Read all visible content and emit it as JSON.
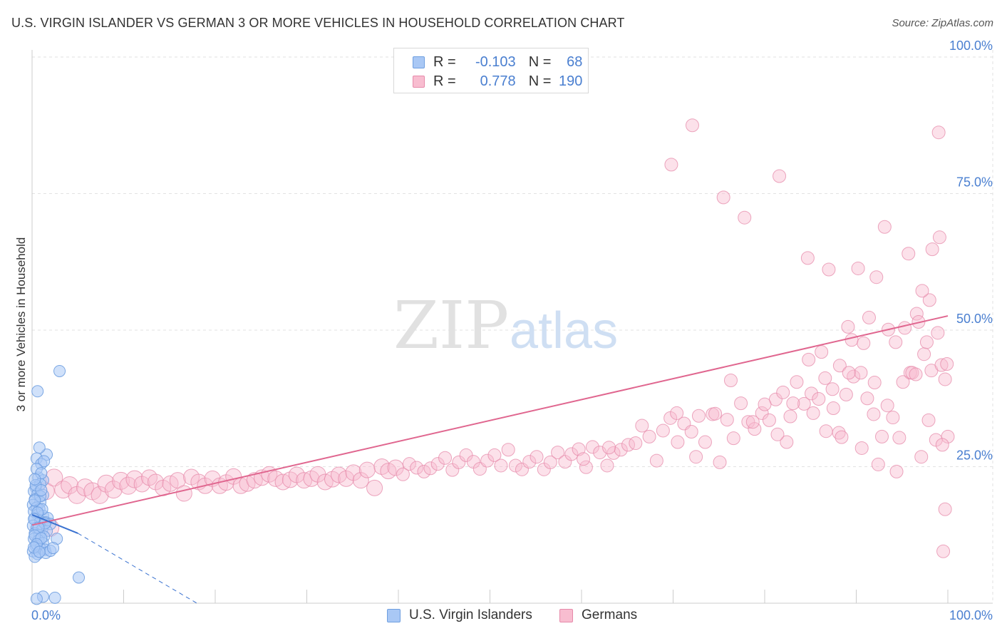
{
  "title": "U.S. VIRGIN ISLANDER VS GERMAN 3 OR MORE VEHICLES IN HOUSEHOLD CORRELATION CHART",
  "source": "Source: ZipAtlas.com",
  "watermark": {
    "zip": "ZIP",
    "atlas": "atlas"
  },
  "legend": {
    "rows": [
      {
        "r_label": "R =",
        "r_value": "-0.103",
        "n_label": "N =",
        "n_value": "68",
        "color": "#a9c8f5"
      },
      {
        "r_label": "R =",
        "r_value": "0.778",
        "n_label": "N =",
        "n_value": "190",
        "color": "#f8bdd0"
      }
    ]
  },
  "bottom_legend": [
    {
      "label": "U.S. Virgin Islanders",
      "color": "#a9c8f5",
      "border": "#6f9fe0"
    },
    {
      "label": "Germans",
      "color": "#f8bdd0",
      "border": "#e68aaa"
    }
  ],
  "chart_data": {
    "type": "scatter",
    "title": "U.S. VIRGIN ISLANDER VS GERMAN 3 OR MORE VEHICLES IN HOUSEHOLD CORRELATION CHART",
    "xlabel": "",
    "ylabel": "3 or more Vehicles in Household",
    "xlim": [
      0,
      100
    ],
    "ylim": [
      0,
      100
    ],
    "x_tick_labels": [
      "0.0%",
      "100.0%"
    ],
    "y_tick_labels": [
      "100.0%",
      "75.0%",
      "50.0%",
      "25.0%"
    ],
    "y_ticks": [
      100,
      75,
      50,
      25
    ],
    "grid": true,
    "legend_position": "top-center",
    "series": [
      {
        "name": "U.S. Virgin Islanders",
        "color": "#6f9fe0",
        "fill": "#a9c8f5",
        "trend": {
          "x0": 0,
          "y0": 16.2,
          "x1": 5,
          "y1": 12.8,
          "dashed_to_x": 18,
          "dashed_to_y": 0
        },
        "points": [
          [
            3,
            42.5
          ],
          [
            0.6,
            38.8
          ],
          [
            1.6,
            27.2
          ],
          [
            0.8,
            28.5
          ],
          [
            0.5,
            26.5
          ],
          [
            1,
            25.5
          ],
          [
            1.3,
            26
          ],
          [
            0.7,
            23
          ],
          [
            1.2,
            22.5
          ],
          [
            0.4,
            21.2
          ],
          [
            0.9,
            21.8
          ],
          [
            0.2,
            20.5
          ],
          [
            0.6,
            20
          ],
          [
            1.2,
            19.8
          ],
          [
            0.3,
            19
          ],
          [
            0.9,
            18.5
          ],
          [
            0.1,
            18
          ],
          [
            0.5,
            17.5
          ],
          [
            0.8,
            17.2
          ],
          [
            0.2,
            16.8
          ],
          [
            0.6,
            16.2
          ],
          [
            1.2,
            16
          ],
          [
            1.7,
            15.6
          ],
          [
            0.3,
            15.5
          ],
          [
            0.9,
            15
          ],
          [
            1.5,
            14.8
          ],
          [
            2,
            14.5
          ],
          [
            0.1,
            14.2
          ],
          [
            0.5,
            13.8
          ],
          [
            1.1,
            13.5
          ],
          [
            1.6,
            13.2
          ],
          [
            0.3,
            12.8
          ],
          [
            0.8,
            12.5
          ],
          [
            1.3,
            12.2
          ],
          [
            0.2,
            11.8
          ],
          [
            0.7,
            11.5
          ],
          [
            1.2,
            11
          ],
          [
            2.7,
            11.8
          ],
          [
            0.4,
            10.5
          ],
          [
            0.9,
            10
          ],
          [
            1.4,
            9.8
          ],
          [
            0.1,
            9.5
          ],
          [
            0.6,
            9
          ],
          [
            1.5,
            9.2
          ],
          [
            2,
            9.6
          ],
          [
            2.3,
            10.1
          ],
          [
            0.3,
            8.5
          ],
          [
            5.1,
            4.7
          ],
          [
            1.2,
            1.2
          ],
          [
            0.5,
            0.8
          ],
          [
            2.5,
            1
          ],
          [
            0.4,
            21.6
          ],
          [
            0.9,
            19.6
          ],
          [
            0.3,
            18.8
          ],
          [
            1.1,
            17.2
          ],
          [
            0.6,
            16.6
          ],
          [
            0.2,
            15.4
          ],
          [
            1.4,
            14.6
          ],
          [
            0.7,
            13.8
          ],
          [
            0.3,
            12.4
          ],
          [
            1.0,
            11.9
          ],
          [
            0.5,
            10.8
          ],
          [
            0.2,
            10.2
          ],
          [
            0.8,
            9.4
          ],
          [
            0.5,
            24.6
          ],
          [
            1.0,
            23.8
          ],
          [
            0.3,
            22.7
          ],
          [
            1.0,
            20.7
          ]
        ]
      },
      {
        "name": "Germans",
        "color": "#e68aaa",
        "fill": "#f8bdd0",
        "trend": {
          "x0": 0,
          "y0": 14.3,
          "x1": 100,
          "y1": 52.6
        },
        "points": [
          [
            2,
            13.8
          ],
          [
            1.5,
            20.5
          ],
          [
            2.4,
            23
          ],
          [
            3.4,
            20.8
          ],
          [
            4.1,
            21.6
          ],
          [
            4.9,
            19.8
          ],
          [
            5.8,
            21.2
          ],
          [
            6.6,
            20.5
          ],
          [
            7.4,
            19.8
          ],
          [
            8.1,
            21.9
          ],
          [
            8.9,
            20.8
          ],
          [
            9.7,
            22.4
          ],
          [
            10.5,
            21.5
          ],
          [
            11.2,
            22.7
          ],
          [
            12,
            21.8
          ],
          [
            12.8,
            23
          ],
          [
            13.5,
            22.2
          ],
          [
            14.3,
            21.1
          ],
          [
            15.1,
            21.9
          ],
          [
            15.9,
            22.5
          ],
          [
            16.6,
            20.1
          ],
          [
            17.4,
            23.1
          ],
          [
            18.2,
            22.2
          ],
          [
            18.9,
            21.5
          ],
          [
            19.7,
            22.8
          ],
          [
            20.5,
            21.5
          ],
          [
            21.2,
            22.1
          ],
          [
            22,
            23.2
          ],
          [
            22.8,
            21.5
          ],
          [
            23.5,
            21.9
          ],
          [
            24.3,
            22.5
          ],
          [
            25.1,
            23
          ],
          [
            25.9,
            23.6
          ],
          [
            26.6,
            22.8
          ],
          [
            27.4,
            22.2
          ],
          [
            28.2,
            22.6
          ],
          [
            28.9,
            23.5
          ],
          [
            29.7,
            22.5
          ],
          [
            30.5,
            22.8
          ],
          [
            31.2,
            23.6
          ],
          [
            32,
            22.2
          ],
          [
            32.8,
            22.7
          ],
          [
            33.5,
            23.5
          ],
          [
            34.3,
            22.8
          ],
          [
            35.1,
            23.9
          ],
          [
            35.9,
            22.5
          ],
          [
            36.6,
            24.4
          ],
          [
            37.4,
            21.1
          ],
          [
            38.2,
            25
          ],
          [
            38.9,
            24.2
          ],
          [
            39.7,
            24.8
          ],
          [
            40.5,
            23.6
          ],
          [
            41.2,
            25.5
          ],
          [
            42,
            24.8
          ],
          [
            42.8,
            24.1
          ],
          [
            43.5,
            24.7
          ],
          [
            44.3,
            25.5
          ],
          [
            45.1,
            26.6
          ],
          [
            45.9,
            24.4
          ],
          [
            46.6,
            25.8
          ],
          [
            47.4,
            27.1
          ],
          [
            48.2,
            25.9
          ],
          [
            48.9,
            24.6
          ],
          [
            49.7,
            26.1
          ],
          [
            50.5,
            27.1
          ],
          [
            51.2,
            25.2
          ],
          [
            52,
            28.1
          ],
          [
            52.8,
            25.2
          ],
          [
            53.5,
            24.5
          ],
          [
            54.3,
            25.9
          ],
          [
            55.1,
            26.8
          ],
          [
            55.9,
            24.5
          ],
          [
            56.6,
            25.8
          ],
          [
            57.4,
            27.6
          ],
          [
            58.2,
            25.9
          ],
          [
            58.9,
            27.3
          ],
          [
            59.7,
            28.2
          ],
          [
            60.5,
            24.9
          ],
          [
            61.2,
            28.6
          ],
          [
            62,
            27.6
          ],
          [
            62.8,
            25.2
          ],
          [
            63.5,
            27.5
          ],
          [
            64.3,
            28.1
          ],
          [
            65.1,
            29
          ],
          [
            65.9,
            29.3
          ],
          [
            66.6,
            32.5
          ],
          [
            67.4,
            30.5
          ],
          [
            68.2,
            26.1
          ],
          [
            68.9,
            31.6
          ],
          [
            69.7,
            33.9
          ],
          [
            70.5,
            29.5
          ],
          [
            71.2,
            32.9
          ],
          [
            72,
            31.4
          ],
          [
            72.8,
            34.3
          ],
          [
            73.5,
            29.5
          ],
          [
            74.3,
            34.6
          ],
          [
            75.1,
            25.8
          ],
          [
            75.9,
            33.6
          ],
          [
            76.6,
            30.2
          ],
          [
            77.4,
            36.6
          ],
          [
            78.2,
            33.2
          ],
          [
            78.9,
            31.9
          ],
          [
            79.7,
            34.8
          ],
          [
            80.5,
            33.5
          ],
          [
            81.2,
            37.3
          ],
          [
            82,
            38.6
          ],
          [
            82.8,
            34.2
          ],
          [
            83.5,
            40.5
          ],
          [
            84.3,
            36.5
          ],
          [
            85.1,
            38.4
          ],
          [
            85.9,
            37.4
          ],
          [
            86.6,
            41.2
          ],
          [
            87.4,
            39.2
          ],
          [
            88.2,
            43.5
          ],
          [
            88.9,
            38.2
          ],
          [
            89.7,
            41.5
          ],
          [
            90.5,
            42.2
          ],
          [
            91.2,
            37.5
          ],
          [
            92,
            40.4
          ],
          [
            92.8,
            30.5
          ],
          [
            93.5,
            50.1
          ],
          [
            94.3,
            47.8
          ],
          [
            95.1,
            40.5
          ],
          [
            95.9,
            42.2
          ],
          [
            96.6,
            53
          ],
          [
            97.4,
            45.6
          ],
          [
            98.2,
            42.6
          ],
          [
            98.9,
            49.5
          ],
          [
            99.7,
            41
          ],
          [
            60.2,
            26.4
          ],
          [
            63,
            28.5
          ],
          [
            70.4,
            34.8
          ],
          [
            72.5,
            26.8
          ],
          [
            74.6,
            34.7
          ],
          [
            76.3,
            40.8
          ],
          [
            80,
            36.4
          ],
          [
            82.4,
            29.5
          ],
          [
            84.8,
            44.6
          ],
          [
            86.2,
            46
          ],
          [
            88.1,
            31.2
          ],
          [
            89.5,
            48.2
          ],
          [
            90.8,
            47.6
          ],
          [
            92.2,
            59.7
          ],
          [
            94,
            34
          ],
          [
            95.3,
            50.4
          ],
          [
            96.8,
            51.5
          ],
          [
            98,
            55.5
          ],
          [
            99.1,
            67
          ],
          [
            100,
            30.5
          ],
          [
            78.7,
            33.2
          ],
          [
            81.4,
            30.9
          ],
          [
            83.1,
            36.6
          ],
          [
            85.3,
            34.8
          ],
          [
            87.5,
            35.7
          ],
          [
            89.2,
            42.2
          ],
          [
            90.6,
            28.4
          ],
          [
            91.9,
            34.6
          ],
          [
            93.4,
            36.2
          ],
          [
            94.7,
            30.3
          ],
          [
            96.1,
            42.2
          ],
          [
            97.9,
            33.5
          ],
          [
            98.7,
            29.9
          ],
          [
            99.4,
            29
          ],
          [
            86.7,
            31.5
          ],
          [
            88.4,
            30.4
          ],
          [
            97.7,
            47.8
          ],
          [
            99.3,
            43.6
          ],
          [
            92.4,
            25.4
          ],
          [
            94.4,
            24.1
          ],
          [
            69.8,
            80.3
          ],
          [
            72.1,
            87.5
          ],
          [
            75.5,
            74.3
          ],
          [
            77.8,
            70.6
          ],
          [
            81.6,
            78.2
          ],
          [
            84.7,
            63.2
          ],
          [
            87,
            61.1
          ],
          [
            90.2,
            61.3
          ],
          [
            93.1,
            68.9
          ],
          [
            95.7,
            64
          ],
          [
            97.2,
            57.2
          ],
          [
            98.3,
            64.8
          ],
          [
            99,
            86.2
          ],
          [
            99.7,
            17.2
          ],
          [
            99.5,
            9.5
          ],
          [
            89.1,
            50.6
          ],
          [
            91.4,
            52.3
          ],
          [
            96.5,
            41.9
          ],
          [
            97.1,
            26.8
          ],
          [
            99.9,
            43.8
          ]
        ]
      }
    ]
  }
}
